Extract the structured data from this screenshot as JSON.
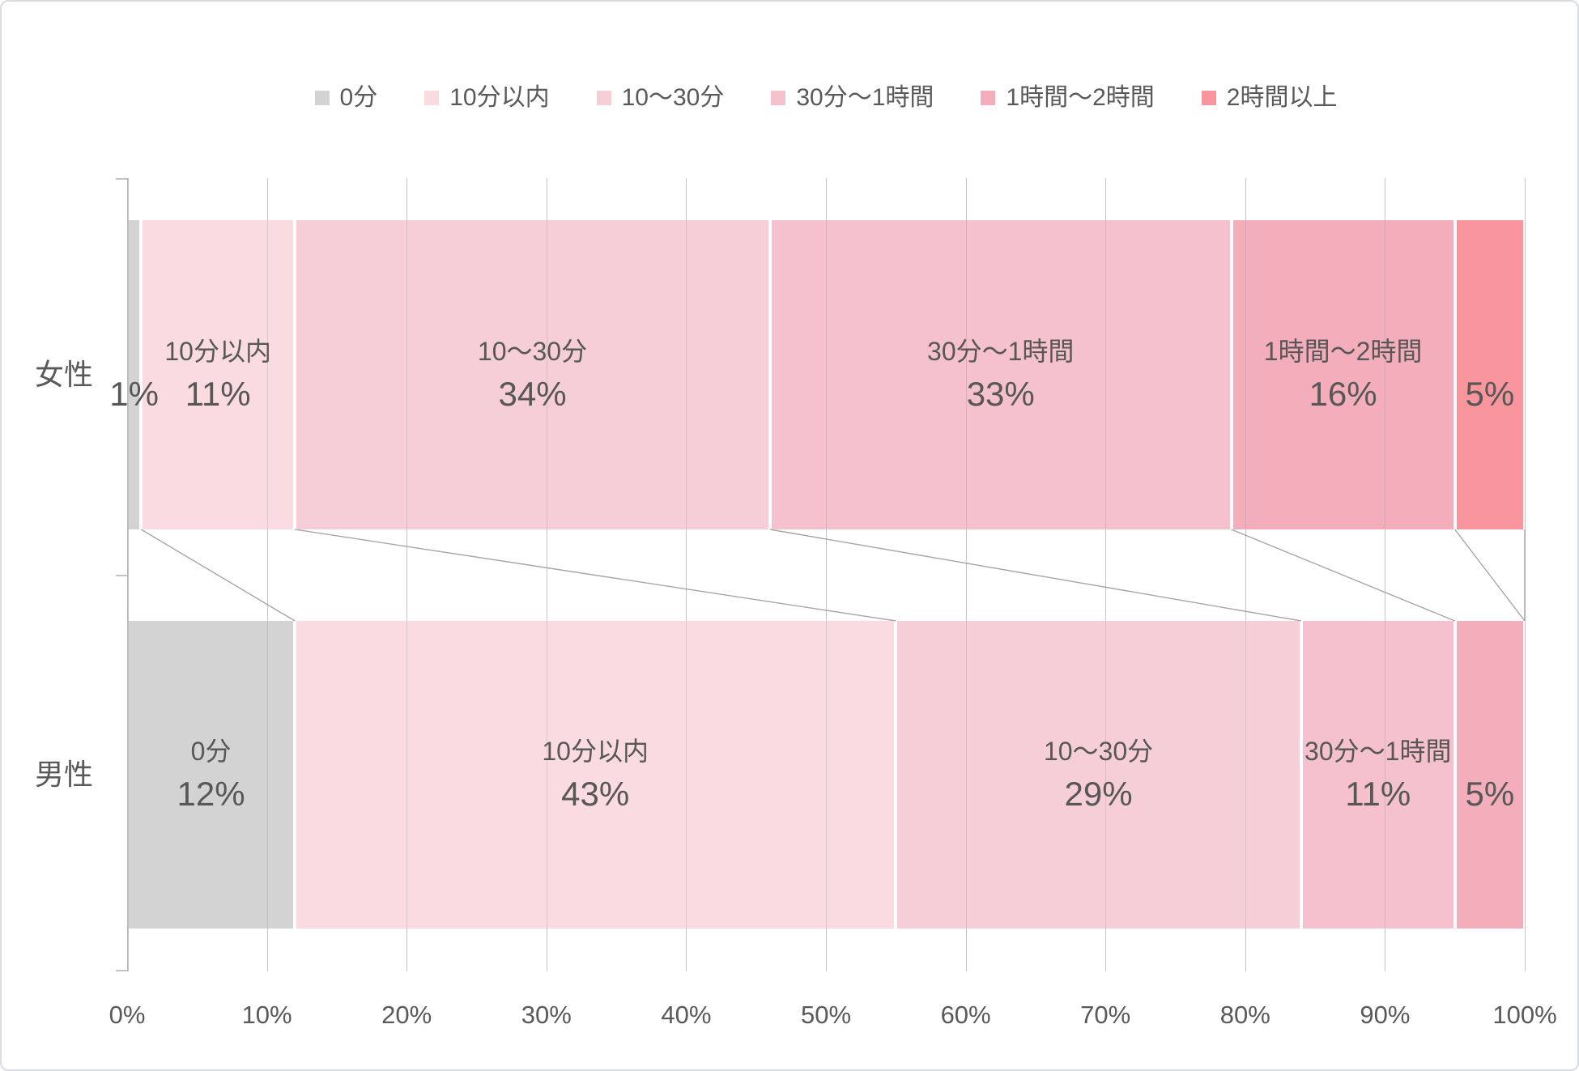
{
  "chart_data": {
    "type": "bar",
    "stacked": true,
    "orientation": "horizontal",
    "unit": "%",
    "categories": [
      "女性",
      "男性"
    ],
    "series": [
      {
        "name": "0分",
        "color": "#d3d3d3",
        "values": [
          1,
          12
        ]
      },
      {
        "name": "10分以内",
        "color": "#fadbe2",
        "values": [
          11,
          43
        ]
      },
      {
        "name": "10〜30分",
        "color": "#f6ced7",
        "values": [
          34,
          29
        ]
      },
      {
        "name": "30分〜1時間",
        "color": "#f5c1cc",
        "values": [
          33,
          11
        ]
      },
      {
        "name": "1時間〜2時間",
        "color": "#f3adbb",
        "values": [
          16,
          5
        ]
      },
      {
        "name": "2時間以上",
        "color": "#f9959d",
        "values": [
          5,
          0
        ]
      }
    ],
    "xlim": [
      0,
      100
    ],
    "x_ticks": [
      "0%",
      "10%",
      "20%",
      "30%",
      "40%",
      "50%",
      "60%",
      "70%",
      "80%",
      "90%",
      "100%"
    ],
    "legend_position": "top",
    "grid": true,
    "data_labels": "segment shows series name + percent when value >= 8, percent only when smaller, hidden when 0",
    "connector_lines": true,
    "colors_meta": {
      "text": "#595959",
      "gridline": "#dadada",
      "axis_line": "#c3c3c3",
      "connector_line": "#a6a6a6"
    }
  }
}
